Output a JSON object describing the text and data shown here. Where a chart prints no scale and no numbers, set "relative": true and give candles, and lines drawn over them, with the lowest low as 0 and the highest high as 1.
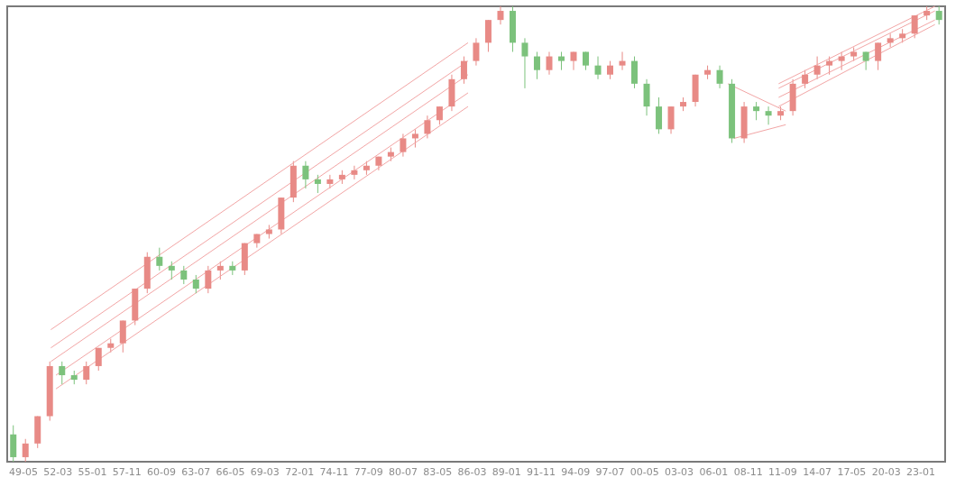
{
  "chart_data": {
    "type": "candlestick",
    "relative": true,
    "grid": false,
    "xlim": [
      "1948-01",
      "2025-01"
    ],
    "xticks": [
      {
        "value": "1949-05",
        "label": "49-05"
      },
      {
        "value": "1952-03",
        "label": "52-03"
      },
      {
        "value": "1955-01",
        "label": "55-01"
      },
      {
        "value": "1957-11",
        "label": "57-11"
      },
      {
        "value": "1960-09",
        "label": "60-09"
      },
      {
        "value": "1963-07",
        "label": "63-07"
      },
      {
        "value": "1966-05",
        "label": "66-05"
      },
      {
        "value": "1969-03",
        "label": "69-03"
      },
      {
        "value": "1972-01",
        "label": "72-01"
      },
      {
        "value": "1974-11",
        "label": "74-11"
      },
      {
        "value": "1977-09",
        "label": "77-09"
      },
      {
        "value": "1980-07",
        "label": "80-07"
      },
      {
        "value": "1983-05",
        "label": "83-05"
      },
      {
        "value": "1986-03",
        "label": "86-03"
      },
      {
        "value": "1989-01",
        "label": "89-01"
      },
      {
        "value": "1991-11",
        "label": "91-11"
      },
      {
        "value": "1994-09",
        "label": "94-09"
      },
      {
        "value": "1997-07",
        "label": "97-07"
      },
      {
        "value": "2000-05",
        "label": "00-05"
      },
      {
        "value": "2003-03",
        "label": "03-03"
      },
      {
        "value": "2006-01",
        "label": "06-01"
      },
      {
        "value": "2008-11",
        "label": "08-11"
      },
      {
        "value": "2011-09",
        "label": "11-09"
      },
      {
        "value": "2014-07",
        "label": "14-07"
      },
      {
        "value": "2017-05",
        "label": "17-05"
      },
      {
        "value": "2020-03",
        "label": "20-03"
      },
      {
        "value": "2023-01",
        "label": "23-01"
      }
    ],
    "series": [
      {
        "type": "candlestick",
        "color": "#e88a86",
        "x": [
          "1949-07",
          "1950-07",
          "1951-07",
          "1954-07",
          "1955-07",
          "1956-07",
          "1957-07",
          "1958-07",
          "1959-07",
          "1964-07",
          "1965-07",
          "1967-07",
          "1968-07",
          "1969-07",
          "1970-07",
          "1971-07",
          "1974-07",
          "1975-07",
          "1976-07",
          "1977-07",
          "1978-07",
          "1979-07",
          "1980-07",
          "1981-07",
          "1982-07",
          "1983-07",
          "1984-07",
          "1985-07",
          "1986-07",
          "1987-07",
          "1988-07",
          "1992-07",
          "1994-07",
          "1997-07",
          "1998-07",
          "2002-07",
          "2003-07",
          "2004-07",
          "2005-07",
          "2008-07",
          "2011-07",
          "2012-07",
          "2013-07",
          "2014-07",
          "2015-07",
          "2016-07",
          "2017-07",
          "2019-07",
          "2020-07",
          "2021-07",
          "2022-07",
          "2023-07"
        ],
        "ohlc": [
          [
            0.01,
            0.05,
            0.0,
            0.04
          ],
          [
            0.04,
            0.1,
            0.03,
            0.1
          ],
          [
            0.1,
            0.22,
            0.09,
            0.21
          ],
          [
            0.18,
            0.22,
            0.17,
            0.21
          ],
          [
            0.21,
            0.25,
            0.2,
            0.25
          ],
          [
            0.25,
            0.27,
            0.24,
            0.26
          ],
          [
            0.26,
            0.31,
            0.24,
            0.31
          ],
          [
            0.31,
            0.38,
            0.3,
            0.38
          ],
          [
            0.38,
            0.46,
            0.37,
            0.45
          ],
          [
            0.38,
            0.43,
            0.37,
            0.42
          ],
          [
            0.42,
            0.44,
            0.4,
            0.43
          ],
          [
            0.42,
            0.48,
            0.41,
            0.48
          ],
          [
            0.48,
            0.5,
            0.47,
            0.5
          ],
          [
            0.5,
            0.52,
            0.49,
            0.51
          ],
          [
            0.51,
            0.58,
            0.5,
            0.58
          ],
          [
            0.58,
            0.66,
            0.57,
            0.65
          ],
          [
            0.61,
            0.63,
            0.6,
            0.62
          ],
          [
            0.62,
            0.64,
            0.61,
            0.63
          ],
          [
            0.63,
            0.65,
            0.62,
            0.64
          ],
          [
            0.64,
            0.66,
            0.63,
            0.65
          ],
          [
            0.65,
            0.67,
            0.64,
            0.67
          ],
          [
            0.67,
            0.69,
            0.66,
            0.68
          ],
          [
            0.68,
            0.72,
            0.67,
            0.71
          ],
          [
            0.71,
            0.73,
            0.69,
            0.72
          ],
          [
            0.72,
            0.76,
            0.71,
            0.75
          ],
          [
            0.75,
            0.78,
            0.74,
            0.78
          ],
          [
            0.78,
            0.85,
            0.77,
            0.84
          ],
          [
            0.84,
            0.89,
            0.83,
            0.88
          ],
          [
            0.88,
            0.93,
            0.87,
            0.92
          ],
          [
            0.92,
            0.97,
            0.9,
            0.97
          ],
          [
            0.97,
            1.0,
            0.96,
            0.99
          ],
          [
            0.86,
            0.9,
            0.85,
            0.89
          ],
          [
            0.88,
            0.9,
            0.86,
            0.9
          ],
          [
            0.85,
            0.88,
            0.84,
            0.87
          ],
          [
            0.87,
            0.9,
            0.86,
            0.88
          ],
          [
            0.73,
            0.78,
            0.72,
            0.78
          ],
          [
            0.78,
            0.8,
            0.77,
            0.79
          ],
          [
            0.79,
            0.85,
            0.78,
            0.85
          ],
          [
            0.85,
            0.87,
            0.84,
            0.86
          ],
          [
            0.71,
            0.79,
            0.7,
            0.78
          ],
          [
            0.76,
            0.78,
            0.75,
            0.77
          ],
          [
            0.77,
            0.84,
            0.76,
            0.83
          ],
          [
            0.83,
            0.86,
            0.82,
            0.85
          ],
          [
            0.85,
            0.89,
            0.84,
            0.87
          ],
          [
            0.87,
            0.89,
            0.85,
            0.88
          ],
          [
            0.88,
            0.9,
            0.86,
            0.89
          ],
          [
            0.89,
            0.91,
            0.88,
            0.9
          ],
          [
            0.88,
            0.92,
            0.86,
            0.92
          ],
          [
            0.92,
            0.94,
            0.91,
            0.93
          ],
          [
            0.93,
            0.95,
            0.92,
            0.94
          ],
          [
            0.94,
            0.98,
            0.93,
            0.98
          ],
          [
            0.98,
            1.0,
            0.97,
            0.99
          ]
        ]
      },
      {
        "type": "candlestick",
        "color": "#7cc27c",
        "x": [
          "1948-07",
          "1952-07",
          "1953-07",
          "1960-07",
          "1961-07",
          "1962-07",
          "1963-07",
          "1966-07",
          "1972-07",
          "1973-07",
          "1989-07",
          "1990-07",
          "1991-07",
          "1993-07",
          "1995-07",
          "1996-07",
          "1999-07",
          "2000-07",
          "2001-07",
          "2006-07",
          "2007-07",
          "2009-07",
          "2010-07",
          "2018-07",
          "2024-07"
        ],
        "ohlc": [
          [
            0.06,
            0.08,
            0.0,
            0.01
          ],
          [
            0.21,
            0.22,
            0.17,
            0.19
          ],
          [
            0.19,
            0.2,
            0.17,
            0.18
          ],
          [
            0.45,
            0.47,
            0.42,
            0.43
          ],
          [
            0.43,
            0.44,
            0.4,
            0.42
          ],
          [
            0.42,
            0.43,
            0.39,
            0.4
          ],
          [
            0.4,
            0.41,
            0.37,
            0.38
          ],
          [
            0.43,
            0.44,
            0.41,
            0.42
          ],
          [
            0.65,
            0.66,
            0.6,
            0.62
          ],
          [
            0.62,
            0.63,
            0.59,
            0.61
          ],
          [
            0.99,
            1.0,
            0.9,
            0.92
          ],
          [
            0.92,
            0.93,
            0.82,
            0.89
          ],
          [
            0.89,
            0.9,
            0.84,
            0.86
          ],
          [
            0.89,
            0.9,
            0.86,
            0.88
          ],
          [
            0.9,
            0.9,
            0.86,
            0.87
          ],
          [
            0.87,
            0.89,
            0.84,
            0.85
          ],
          [
            0.88,
            0.89,
            0.82,
            0.83
          ],
          [
            0.83,
            0.84,
            0.76,
            0.78
          ],
          [
            0.78,
            0.8,
            0.72,
            0.73
          ],
          [
            0.86,
            0.87,
            0.82,
            0.83
          ],
          [
            0.83,
            0.84,
            0.7,
            0.71
          ],
          [
            0.78,
            0.79,
            0.75,
            0.77
          ],
          [
            0.77,
            0.78,
            0.74,
            0.76
          ],
          [
            0.9,
            0.9,
            0.86,
            0.88
          ],
          [
            0.99,
            1.0,
            0.96,
            0.97
          ]
        ]
      },
      {
        "type": "line",
        "color": "#f2a5a5",
        "x": [
          "1951-08",
          "1985-11"
        ],
        "values": [
          0.29,
          0.92
        ]
      },
      {
        "type": "line",
        "color": "#f2a5a5",
        "x": [
          "1951-08",
          "1985-11"
        ],
        "values": [
          0.25,
          0.88
        ]
      },
      {
        "type": "line",
        "color": "#f2a5a5",
        "x": [
          "1951-08",
          "1985-11"
        ],
        "values": [
          0.22,
          0.85
        ]
      },
      {
        "type": "line",
        "color": "#f2a5a5",
        "x": [
          "1952-01",
          "1985-11"
        ],
        "values": [
          0.19,
          0.81
        ]
      },
      {
        "type": "line",
        "color": "#f2a5a5",
        "x": [
          "1952-01",
          "1985-11"
        ],
        "values": [
          0.16,
          0.78
        ]
      },
      {
        "type": "line",
        "color": "#f2a5a5",
        "x": [
          "2007-03",
          "2011-12"
        ],
        "values": [
          0.83,
          0.77
        ]
      },
      {
        "type": "line",
        "color": "#f2a5a5",
        "x": [
          "2007-09",
          "2011-12"
        ],
        "values": [
          0.71,
          0.74
        ]
      },
      {
        "type": "line",
        "color": "#f2a5a5",
        "x": [
          "2011-05",
          "2024-03"
        ],
        "values": [
          0.83,
          1.0
        ]
      },
      {
        "type": "line",
        "color": "#f2a5a5",
        "x": [
          "2011-05",
          "2024-03"
        ],
        "values": [
          0.82,
          0.99
        ]
      },
      {
        "type": "line",
        "color": "#f2a5a5",
        "x": [
          "2011-05",
          "2024-03"
        ],
        "values": [
          0.8,
          0.97
        ]
      },
      {
        "type": "line",
        "color": "#f2a5a5",
        "x": [
          "2011-05",
          "2024-03"
        ],
        "values": [
          0.78,
          0.96
        ]
      }
    ]
  }
}
